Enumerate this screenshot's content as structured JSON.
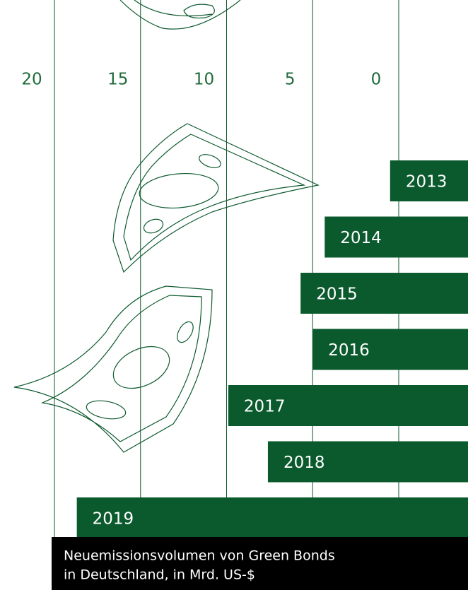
{
  "chart_data": {
    "type": "barh",
    "title": [
      "Neuemissionsvolumen von Green Bonds",
      "in Deutschland, in Mrd. US-$"
    ],
    "categories": [
      "2013",
      "2014",
      "2015",
      "2016",
      "2017",
      "2018",
      "2019"
    ],
    "values": [
      0.5,
      4.3,
      5.7,
      5.0,
      9.9,
      7.6,
      18.7
    ],
    "color": "#0b5a2e",
    "xlim": [
      20,
      0
    ],
    "xticks": [
      20,
      15,
      10,
      5,
      0
    ],
    "grid": true
  }
}
